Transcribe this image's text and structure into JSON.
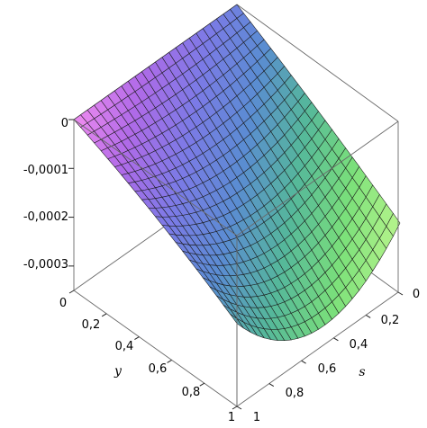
{
  "chart_data": {
    "type": "surface3d",
    "title": "",
    "axes": {
      "y": {
        "label": "y",
        "range": [
          0,
          1
        ],
        "ticks": [
          "0",
          "0,2",
          "0,4",
          "0,6",
          "0,8",
          "1"
        ]
      },
      "s": {
        "label": "s",
        "range": [
          0,
          1
        ],
        "ticks": [
          "0",
          "0,2",
          "0,4",
          "0,6",
          "0,8",
          "1"
        ]
      },
      "z": {
        "label": "",
        "range": [
          -0.00035,
          0
        ],
        "ticks": [
          "0",
          "-0,0001",
          "-0,0002",
          "-0,0003"
        ]
      }
    },
    "grid_resolution": [
      24,
      24
    ],
    "surface_samples": {
      "s": [
        0,
        0.5,
        1
      ],
      "y": [
        0,
        0.5,
        1
      ],
      "z": [
        [
          0,
          0,
          0
        ],
        [
          -8e-05,
          -0.00015,
          -0.0001
        ],
        [
          -0.00018,
          -0.00031,
          -0.00021
        ]
      ]
    },
    "colormap": [
      "#f08cf0",
      "#b06ae8",
      "#7c7ae6",
      "#5a8cd2",
      "#55b89a",
      "#7be07a",
      "#b8f58c"
    ],
    "box": true,
    "legend": "none"
  }
}
